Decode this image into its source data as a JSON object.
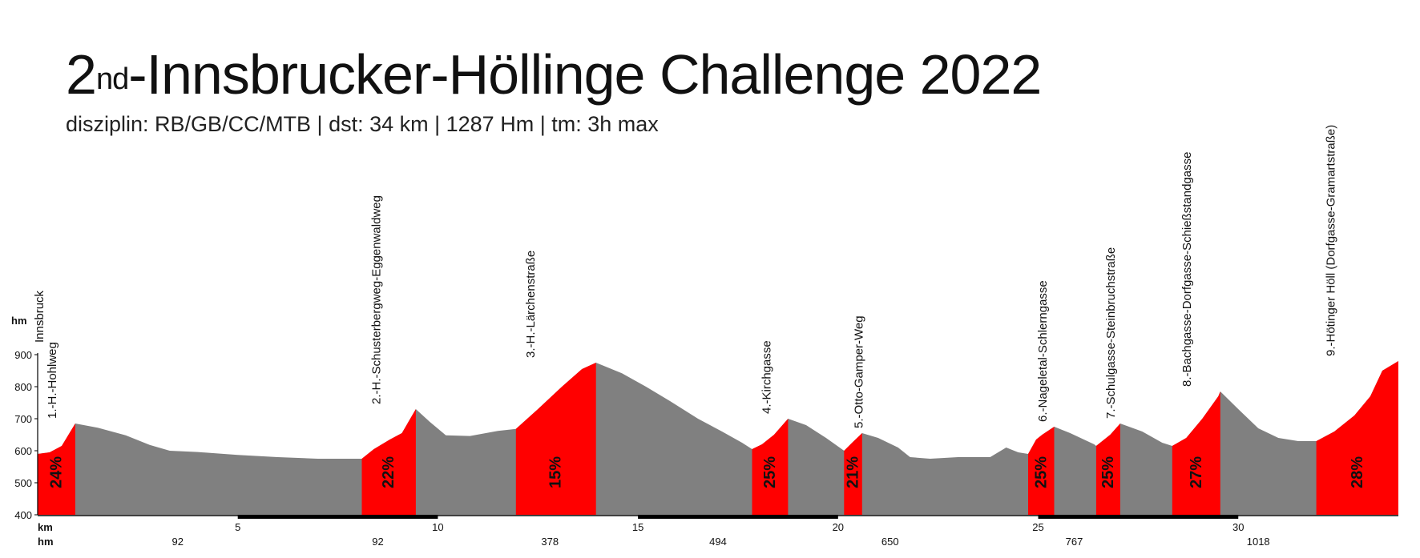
{
  "header": {
    "title_prefix": "2",
    "title_sup": "nd",
    "title_main": "-Innsbrucker-Höllinge Challenge 2022",
    "subtitle": "disziplin: RB/GB/CC/MTB | dst: 34 km | 1287 Hm | tm: 3h max"
  },
  "chart_data": {
    "type": "area",
    "title": "2nd-Innsbrucker-Höllinge Challenge 2022",
    "subtitle": "disziplin: RB/GB/CC/MTB | dst: 34 km | 1287 Hm | tm: 3h max",
    "xlabel": "km",
    "ylabel": "hm",
    "xlim": [
      0,
      34
    ],
    "ylim": [
      400,
      900
    ],
    "x_ticks": [
      5,
      10,
      15,
      20,
      25,
      30
    ],
    "y_ticks": [
      400,
      500,
      600,
      700,
      800,
      900
    ],
    "start_label": "Innsbruck",
    "cumulative_hm_labels": [
      {
        "x": 3.5,
        "label": "92"
      },
      {
        "x": 8.5,
        "label": "92"
      },
      {
        "x": 12.8,
        "label": "378"
      },
      {
        "x": 17.0,
        "label": "494"
      },
      {
        "x": 21.3,
        "label": "650"
      },
      {
        "x": 25.9,
        "label": "767"
      },
      {
        "x": 30.5,
        "label": "1018"
      }
    ],
    "axis_bands": [
      [
        5,
        10
      ],
      [
        15,
        20
      ],
      [
        25,
        30
      ]
    ],
    "profile": [
      [
        0,
        590
      ],
      [
        0.3,
        595
      ],
      [
        0.6,
        615
      ],
      [
        0.94,
        685
      ],
      [
        1.5,
        672
      ],
      [
        2.2,
        648
      ],
      [
        2.8,
        618
      ],
      [
        3.3,
        600
      ],
      [
        4,
        596
      ],
      [
        5,
        587
      ],
      [
        6,
        580
      ],
      [
        7,
        575
      ],
      [
        8,
        575
      ],
      [
        8.1,
        575
      ],
      [
        8.4,
        605
      ],
      [
        8.8,
        635
      ],
      [
        9.1,
        655
      ],
      [
        9.45,
        730
      ],
      [
        9.8,
        690
      ],
      [
        10.2,
        648
      ],
      [
        10.8,
        646
      ],
      [
        11.5,
        662
      ],
      [
        11.95,
        668
      ],
      [
        12.5,
        730
      ],
      [
        13.1,
        800
      ],
      [
        13.6,
        855
      ],
      [
        13.95,
        875
      ],
      [
        14.6,
        842
      ],
      [
        15.2,
        800
      ],
      [
        15.8,
        755
      ],
      [
        16.5,
        700
      ],
      [
        17.1,
        660
      ],
      [
        17.6,
        625
      ],
      [
        17.85,
        605
      ],
      [
        18.1,
        620
      ],
      [
        18.4,
        650
      ],
      [
        18.75,
        700
      ],
      [
        19.2,
        680
      ],
      [
        19.7,
        640
      ],
      [
        20.15,
        600
      ],
      [
        20.35,
        625
      ],
      [
        20.6,
        655
      ],
      [
        21,
        640
      ],
      [
        21.5,
        610
      ],
      [
        21.8,
        580
      ],
      [
        22.3,
        575
      ],
      [
        23,
        580
      ],
      [
        23.8,
        580
      ],
      [
        24.2,
        610
      ],
      [
        24.5,
        595
      ],
      [
        24.75,
        590
      ],
      [
        24.95,
        635
      ],
      [
        25.1,
        650
      ],
      [
        25.4,
        675
      ],
      [
        25.8,
        655
      ],
      [
        26.4,
        620
      ],
      [
        26.45,
        615
      ],
      [
        26.8,
        650
      ],
      [
        27.05,
        685
      ],
      [
        27.6,
        660
      ],
      [
        28.1,
        625
      ],
      [
        28.35,
        615
      ],
      [
        28.7,
        640
      ],
      [
        29.1,
        700
      ],
      [
        29.5,
        770
      ],
      [
        29.55,
        785
      ],
      [
        30,
        730
      ],
      [
        30.5,
        670
      ],
      [
        31,
        640
      ],
      [
        31.5,
        630
      ],
      [
        31.95,
        630
      ],
      [
        32.4,
        660
      ],
      [
        32.9,
        710
      ],
      [
        33.3,
        770
      ],
      [
        33.6,
        850
      ],
      [
        34,
        880
      ]
    ],
    "climbs": [
      {
        "name": "1.-H.-Hohlweg",
        "start": 0,
        "end": 0.94,
        "percent": "24%"
      },
      {
        "name": "2.-H.-Schusterbergweg-Eggenwaldweg",
        "start": 8.1,
        "end": 9.45,
        "percent": "22%"
      },
      {
        "name": "3.-H.-Lärchenstraße",
        "start": 11.95,
        "end": 13.95,
        "percent": "15%"
      },
      {
        "name": "4.-Kirchgasse",
        "start": 17.85,
        "end": 18.75,
        "percent": "25%"
      },
      {
        "name": "5.-Otto-Gamper-Weg",
        "start": 20.15,
        "end": 20.6,
        "percent": "21%"
      },
      {
        "name": "6.-Nageletal-Schlerngasse",
        "start": 24.75,
        "end": 25.4,
        "percent": "25%"
      },
      {
        "name": "7.-Schulgasse-Steinbruchstraße",
        "start": 26.45,
        "end": 27.05,
        "percent": "25%"
      },
      {
        "name": "8.-Bachgasse-Dorfgasse-Schießstandgasse",
        "start": 28.35,
        "end": 29.55,
        "percent": "27%"
      },
      {
        "name": "9.-Hötinger Höll (Dorfgasse-Gramartstraße)",
        "start": 31.95,
        "end": 34,
        "percent": "28%"
      }
    ],
    "colors": {
      "climb": "#ff0000",
      "profile": "#808080",
      "axis": "#000000"
    },
    "grid": false
  }
}
